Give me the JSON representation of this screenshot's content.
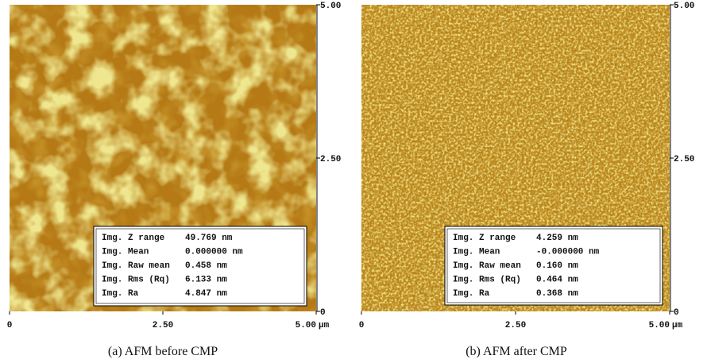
{
  "panels": [
    {
      "caption": "(a) AFM before CMP",
      "x_ticks": [
        "0",
        "2.50",
        "5.00"
      ],
      "x_unit": "µm",
      "y_ticks": [
        "5.00",
        "2.50",
        "0"
      ],
      "stats": [
        {
          "label": "Img. Z range",
          "value": "49.769 nm"
        },
        {
          "label": "Img. Mean",
          "value": "0.000000 nm"
        },
        {
          "label": "Img. Raw mean",
          "value": "0.458 nm"
        },
        {
          "label": "Img. Rms (Rq)",
          "value": "6.133 nm"
        },
        {
          "label": "Img. Ra",
          "value": "4.847 nm"
        }
      ]
    },
    {
      "caption": "(b) AFM after CMP",
      "x_ticks": [
        "0",
        "2.50",
        "5.00"
      ],
      "x_unit": "µm",
      "y_ticks": [
        "5.00",
        "2.50",
        "0"
      ],
      "stats": [
        {
          "label": "Img. Z range",
          "value": "4.259 nm"
        },
        {
          "label": "Img. Mean",
          "value": "-0.000000 nm"
        },
        {
          "label": "Img. Raw mean",
          "value": "0.160 nm"
        },
        {
          "label": "Img. Rms (Rq)",
          "value": "0.464 nm"
        },
        {
          "label": "Img. Ra",
          "value": "0.368 nm"
        }
      ]
    }
  ]
}
